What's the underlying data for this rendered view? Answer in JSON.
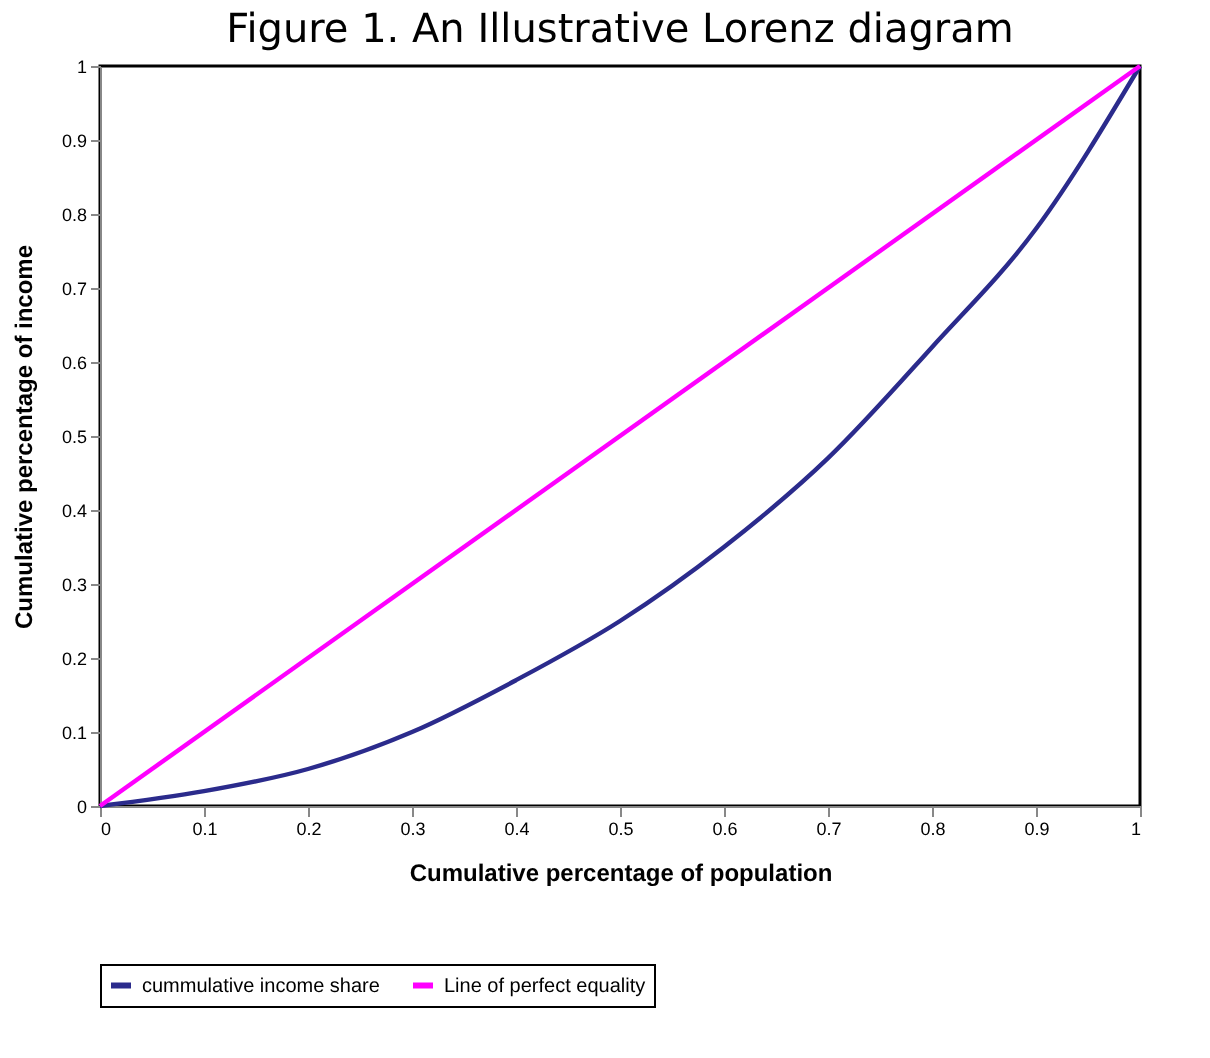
{
  "chart_data": {
    "type": "line",
    "title": "Figure 1.  An Illustrative Lorenz diagram",
    "xlabel": "Cumulative percentage of population",
    "ylabel": "Cumulative percentage of income",
    "x": [
      0,
      0.1,
      0.2,
      0.3,
      0.4,
      0.5,
      0.6,
      0.7,
      0.8,
      0.9,
      1
    ],
    "series": [
      {
        "name": "cummulative income share",
        "color": "#2b2b8c",
        "values": [
          0,
          0.02,
          0.05,
          0.1,
          0.17,
          0.25,
          0.35,
          0.47,
          0.62,
          0.78,
          1
        ]
      },
      {
        "name": "Line of perfect equality",
        "color": "#ff00ff",
        "x": [
          0,
          1
        ],
        "values": [
          0,
          1
        ]
      }
    ],
    "xlim": [
      0,
      1
    ],
    "ylim": [
      0,
      1
    ],
    "xticks": [
      0,
      0.1,
      0.2,
      0.3,
      0.4,
      0.5,
      0.6,
      0.7,
      0.8,
      0.9,
      1
    ],
    "yticks": [
      0,
      0.1,
      0.2,
      0.3,
      0.4,
      0.5,
      0.6,
      0.7,
      0.8,
      0.9,
      1
    ],
    "grid": false,
    "legend": "bottom",
    "marker": "none",
    "line_style": "solid"
  }
}
